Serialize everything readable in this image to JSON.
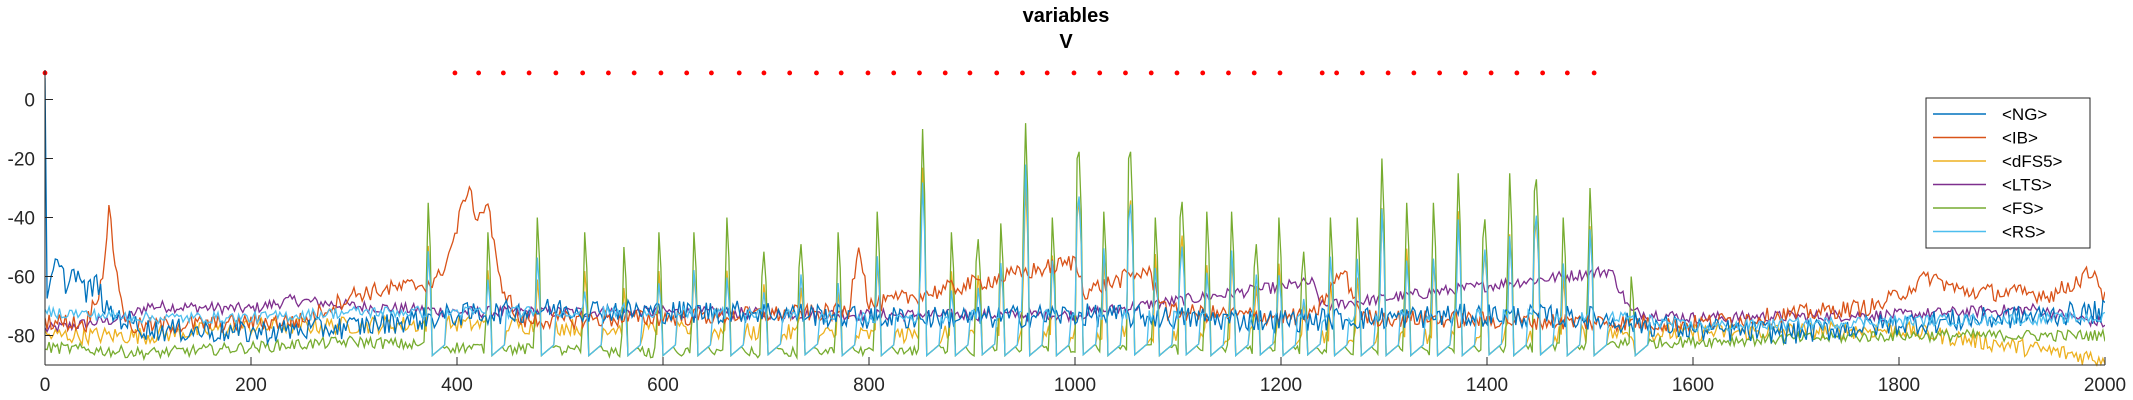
{
  "chart_data": {
    "type": "line",
    "title": "variables",
    "subtitle": "V",
    "xlabel": "",
    "ylabel": "",
    "xlim": [
      0,
      2000
    ],
    "ylim": [
      -90,
      10
    ],
    "xticks": [
      0,
      200,
      400,
      600,
      800,
      1000,
      1200,
      1400,
      1600,
      1800,
      2000
    ],
    "yticks": [
      0,
      -20,
      -40,
      -60,
      -80
    ],
    "grid": false,
    "legend_position": "top-right",
    "series": [
      {
        "name": "<NG>",
        "color": "#0072BD",
        "baseline": -76,
        "noise": 4,
        "points": [
          [
            0,
            10
          ],
          [
            1,
            -60
          ],
          [
            2,
            -70
          ],
          [
            5,
            -65
          ],
          [
            10,
            -55
          ],
          [
            20,
            -62
          ],
          [
            30,
            -58
          ],
          [
            40,
            -66
          ],
          [
            50,
            -62
          ],
          [
            60,
            -72
          ],
          [
            100,
            -78
          ],
          [
            200,
            -79
          ],
          [
            300,
            -77
          ],
          [
            400,
            -73
          ],
          [
            500,
            -71
          ],
          [
            600,
            -72
          ],
          [
            700,
            -72
          ],
          [
            800,
            -74
          ],
          [
            900,
            -74
          ],
          [
            1000,
            -73
          ],
          [
            1100,
            -74
          ],
          [
            1200,
            -75
          ],
          [
            1300,
            -74
          ],
          [
            1400,
            -73
          ],
          [
            1500,
            -74
          ],
          [
            1600,
            -78
          ],
          [
            1700,
            -79
          ],
          [
            1800,
            -76
          ],
          [
            1900,
            -74
          ],
          [
            2000,
            -72
          ]
        ]
      },
      {
        "name": "<IB>",
        "color": "#D95319",
        "baseline": -75,
        "noise": 3,
        "points": [
          [
            0,
            -75
          ],
          [
            40,
            -76
          ],
          [
            55,
            -62
          ],
          [
            62,
            -38
          ],
          [
            70,
            -60
          ],
          [
            80,
            -77
          ],
          [
            250,
            -75
          ],
          [
            300,
            -66
          ],
          [
            380,
            -62
          ],
          [
            395,
            -50
          ],
          [
            410,
            -30
          ],
          [
            420,
            -40
          ],
          [
            430,
            -35
          ],
          [
            440,
            -60
          ],
          [
            460,
            -75
          ],
          [
            600,
            -74
          ],
          [
            780,
            -72
          ],
          [
            790,
            -48
          ],
          [
            800,
            -70
          ],
          [
            1000,
            -55
          ],
          [
            1010,
            -65
          ],
          [
            1070,
            -58
          ],
          [
            1090,
            -72
          ],
          [
            1230,
            -74
          ],
          [
            1260,
            -58
          ],
          [
            1280,
            -74
          ],
          [
            1600,
            -76
          ],
          [
            1780,
            -70
          ],
          [
            1830,
            -60
          ],
          [
            1860,
            -65
          ],
          [
            1950,
            -66
          ],
          [
            1990,
            -58
          ],
          [
            2000,
            -68
          ]
        ]
      },
      {
        "name": "<dFS5>",
        "color": "#EDB120",
        "baseline": -79,
        "noise": 3,
        "points": [
          [
            0,
            -80
          ],
          [
            100,
            -80
          ],
          [
            200,
            -77
          ],
          [
            400,
            -76
          ],
          [
            600,
            -78
          ],
          [
            800,
            -80
          ],
          [
            1000,
            -79
          ],
          [
            1200,
            -80
          ],
          [
            1400,
            -80
          ],
          [
            1600,
            -79
          ],
          [
            1800,
            -78
          ],
          [
            2000,
            -88
          ]
        ]
      },
      {
        "name": "<LTS>",
        "color": "#7E2F8E",
        "baseline": -72,
        "noise": 2,
        "points": [
          [
            0,
            -78
          ],
          [
            80,
            -74
          ],
          [
            100,
            -70
          ],
          [
            200,
            -71
          ],
          [
            240,
            -68
          ],
          [
            300,
            -70
          ],
          [
            400,
            -72
          ],
          [
            600,
            -72
          ],
          [
            800,
            -73
          ],
          [
            1000,
            -73
          ],
          [
            1230,
            -62
          ],
          [
            1240,
            -70
          ],
          [
            1520,
            -58
          ],
          [
            1540,
            -72
          ],
          [
            1600,
            -74
          ],
          [
            1800,
            -73
          ],
          [
            1930,
            -71
          ],
          [
            2000,
            -76
          ]
        ]
      },
      {
        "name": "<FS>",
        "color": "#77AC30",
        "baseline": -84,
        "noise": 2,
        "points": [
          [
            0,
            -84
          ],
          [
            100,
            -86
          ],
          [
            300,
            -82
          ],
          [
            400,
            -84
          ],
          [
            600,
            -86
          ],
          [
            800,
            -86
          ],
          [
            1000,
            -85
          ],
          [
            1200,
            -85
          ],
          [
            1300,
            -87
          ],
          [
            1400,
            -86
          ],
          [
            1500,
            -83
          ],
          [
            1600,
            -82
          ],
          [
            1800,
            -80
          ],
          [
            2000,
            -80
          ]
        ]
      },
      {
        "name": "<RS>",
        "color": "#4DBEEE",
        "baseline": -74,
        "noise": 2,
        "points": [
          [
            0,
            -72
          ],
          [
            100,
            -74
          ],
          [
            200,
            -74
          ],
          [
            300,
            -72
          ],
          [
            400,
            -72
          ],
          [
            600,
            -72
          ],
          [
            800,
            -74
          ],
          [
            1000,
            -73
          ],
          [
            1200,
            -74
          ],
          [
            1400,
            -73
          ],
          [
            1540,
            -74
          ],
          [
            1600,
            -77
          ],
          [
            1800,
            -75
          ],
          [
            2000,
            -74
          ]
        ]
      }
    ],
    "spike_series": [
      "<FS>",
      "<RS>",
      "<dFS5>"
    ],
    "spike_times": [
      372,
      430,
      478,
      524,
      562,
      596,
      630,
      662,
      697,
      733,
      770,
      808,
      852,
      880,
      905,
      928,
      952,
      978,
      1003,
      1028,
      1053,
      1078,
      1103,
      1128,
      1152,
      1175,
      1198,
      1221,
      1248,
      1274,
      1298,
      1322,
      1348,
      1372,
      1397,
      1422,
      1447,
      1474,
      1500,
      1540
    ],
    "spike_peaks": [
      -35,
      -45,
      -40,
      -45,
      -50,
      -45,
      -45,
      -40,
      -45,
      -42,
      -45,
      -38,
      -10,
      -45,
      -40,
      -42,
      -8,
      -40,
      -5,
      -38,
      -5,
      -40,
      -25,
      -38,
      -38,
      -42,
      -40,
      -45,
      -40,
      -40,
      -20,
      -35,
      -35,
      -25,
      -32,
      -25,
      -16,
      -40,
      -30,
      -60
    ],
    "marker_series": {
      "color": "#FF0000",
      "y": 9,
      "x": [
        0,
        398,
        421,
        445,
        470,
        496,
        522,
        547,
        572,
        598,
        623,
        647,
        674,
        698,
        723,
        749,
        773,
        799,
        824,
        849,
        874,
        898,
        924,
        949,
        973,
        999,
        1024,
        1049,
        1074,
        1099,
        1124,
        1149,
        1174,
        1199,
        1240,
        1254,
        1279,
        1304,
        1329,
        1354,
        1379,
        1404,
        1429,
        1454,
        1478,
        1504
      ]
    }
  }
}
